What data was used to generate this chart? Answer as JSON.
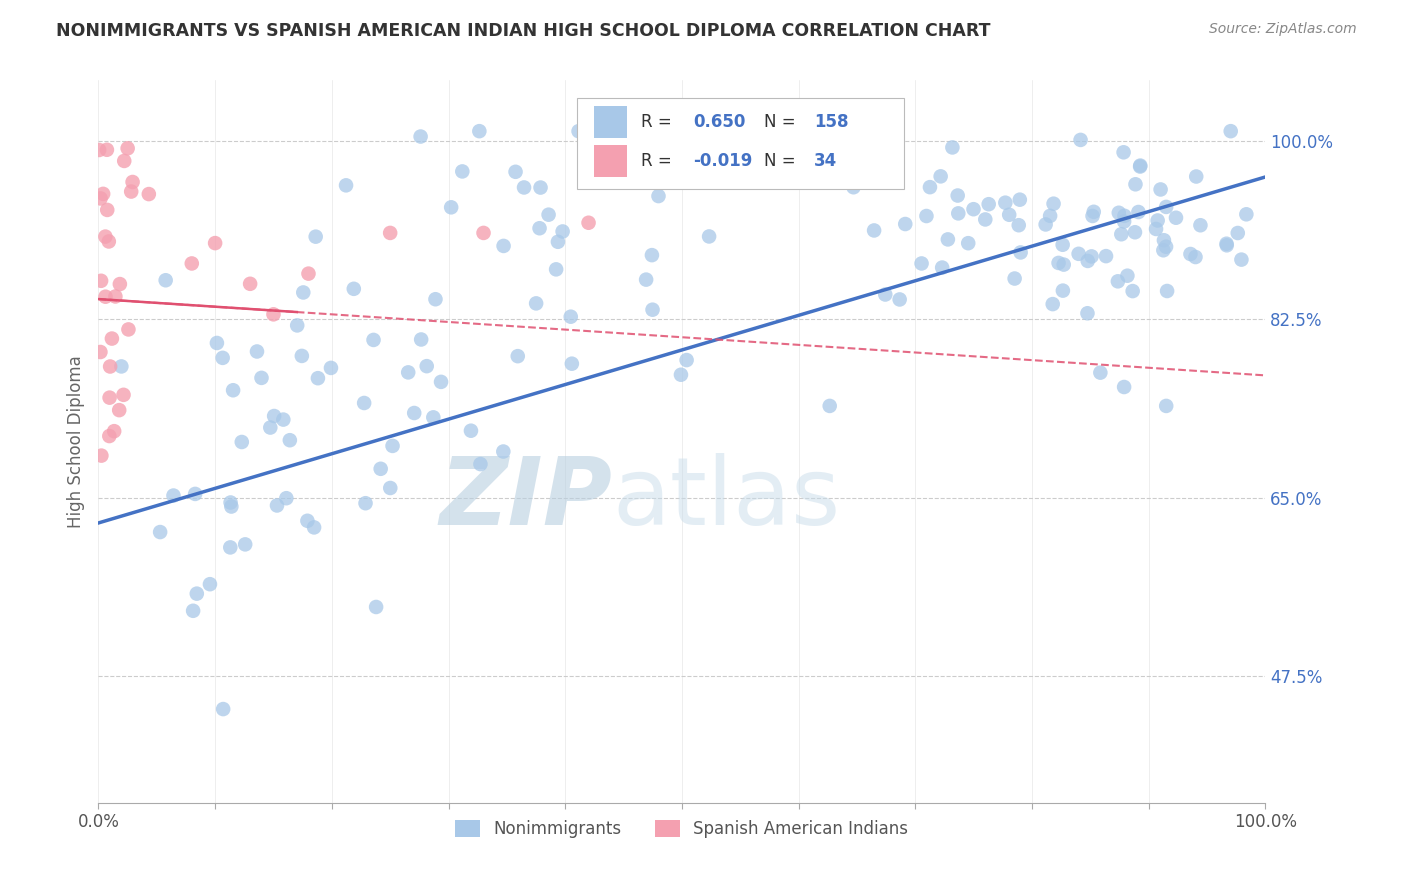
{
  "title": "NONIMMIGRANTS VS SPANISH AMERICAN INDIAN HIGH SCHOOL DIPLOMA CORRELATION CHART",
  "source": "Source: ZipAtlas.com",
  "ylabel": "High School Diploma",
  "legend_label1": "Nonimmigrants",
  "legend_label2": "Spanish American Indians",
  "R1": 0.65,
  "N1": 158,
  "R2": -0.019,
  "N2": 34,
  "color_blue": "#a8c8e8",
  "color_blue_line": "#4472c4",
  "color_pink": "#f4a0b0",
  "color_pink_line": "#e05070",
  "color_blue_text": "#4472c4",
  "xlim": [
    0.0,
    1.0
  ],
  "ylim": [
    0.35,
    1.06
  ],
  "yticks": [
    0.475,
    0.65,
    0.825,
    1.0
  ],
  "ytick_labels": [
    "47.5%",
    "65.0%",
    "82.5%",
    "100.0%"
  ],
  "xticks": [
    0.0,
    0.1,
    0.2,
    0.3,
    0.4,
    0.5,
    0.6,
    0.7,
    0.8,
    0.9,
    1.0
  ],
  "watermark_zip": "ZIP",
  "watermark_atlas": "atlas",
  "background": "#ffffff",
  "grid_color": "#cccccc",
  "blue_trend_x": [
    0.0,
    1.0
  ],
  "blue_trend_y": [
    0.625,
    0.965
  ],
  "pink_trend_x": [
    0.0,
    1.0
  ],
  "pink_trend_y": [
    0.845,
    0.77
  ]
}
